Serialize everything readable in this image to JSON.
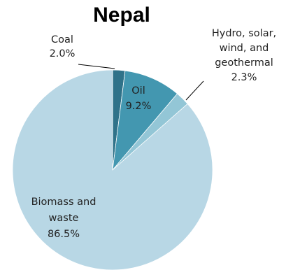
{
  "chart_data": {
    "type": "pie",
    "title": "Nepal",
    "slices": [
      {
        "name": "Coal",
        "value": 2.0,
        "label": "2.0%",
        "color": "#2f7289"
      },
      {
        "name": "Oil",
        "value": 9.2,
        "label": "9.2%",
        "color": "#4397b0"
      },
      {
        "name": "Hydro, solar, wind, and geothermal",
        "value": 2.3,
        "label": "2.3%",
        "color": "#93c6d6"
      },
      {
        "name": "Biomass and waste",
        "value": 86.5,
        "label": "86.5%",
        "color": "#b8d7e5"
      }
    ],
    "label_lines": {
      "Coal": [
        "Coal",
        "2.0%"
      ],
      "Oil": [
        "Oil",
        "9.2%"
      ],
      "Hydro, solar, wind, and geothermal": [
        "Hydro, solar,",
        "wind, and",
        "geothermal",
        "2.3%"
      ],
      "Biomass and waste": [
        "Biomass and",
        "waste",
        "86.5%"
      ]
    },
    "start_angle_deg": 0,
    "direction": "clockwise"
  }
}
